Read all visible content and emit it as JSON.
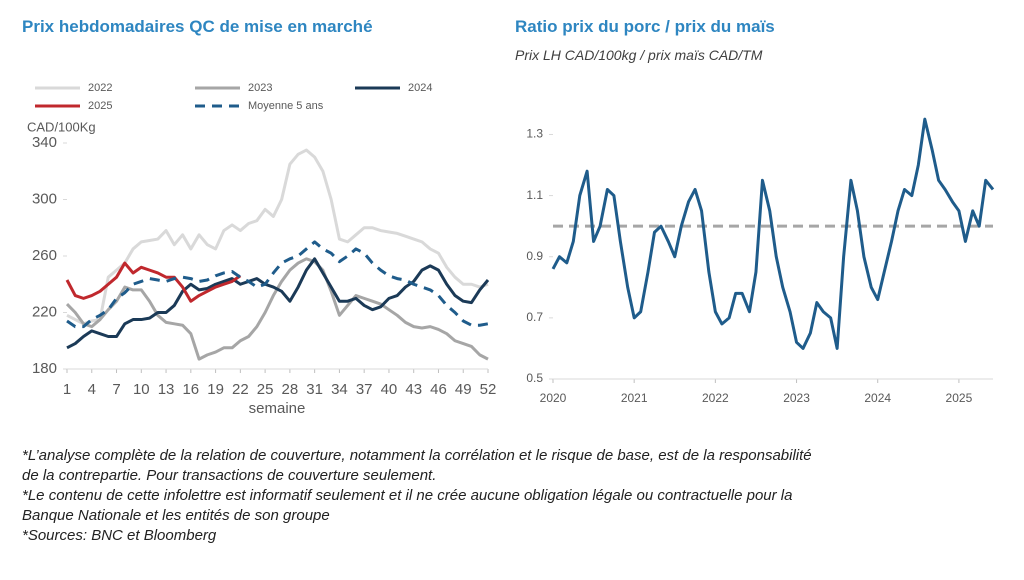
{
  "chart_data": [
    {
      "type": "line",
      "title": "Prix hebdomadaires QC de mise en marché",
      "y_label": "CAD/100Kg",
      "x_label": "semaine",
      "x": [
        1,
        2,
        3,
        4,
        5,
        6,
        7,
        8,
        9,
        10,
        11,
        12,
        13,
        14,
        15,
        16,
        17,
        18,
        19,
        20,
        21,
        22,
        23,
        24,
        25,
        26,
        27,
        28,
        29,
        30,
        31,
        32,
        33,
        34,
        35,
        36,
        37,
        38,
        39,
        40,
        41,
        42,
        43,
        44,
        45,
        46,
        47,
        48,
        49,
        50,
        51,
        52
      ],
      "xlim": [
        1,
        52
      ],
      "xticks": [
        1,
        4,
        7,
        10,
        13,
        16,
        19,
        22,
        25,
        28,
        31,
        34,
        37,
        40,
        43,
        46,
        49,
        52
      ],
      "ylim": [
        180,
        340
      ],
      "yticks": [
        180,
        220,
        260,
        300,
        340
      ],
      "legend": "top",
      "series": [
        {
          "name": "2022",
          "color": "#d9d9d9",
          "values": [
            218,
            215,
            212,
            214,
            215,
            245,
            250,
            255,
            265,
            270,
            271,
            272,
            278,
            268,
            275,
            265,
            275,
            268,
            265,
            278,
            282,
            278,
            283,
            285,
            293,
            288,
            300,
            325,
            332,
            335,
            330,
            320,
            300,
            272,
            270,
            275,
            280,
            280,
            278,
            277,
            276,
            274,
            272,
            270,
            265,
            262,
            252,
            245,
            240,
            240,
            238,
            240
          ]
        },
        {
          "name": "2023",
          "color": "#a6a6a6",
          "values": [
            226,
            220,
            212,
            210,
            215,
            222,
            228,
            238,
            236,
            236,
            228,
            218,
            213,
            212,
            211,
            205,
            187,
            190,
            192,
            195,
            195,
            200,
            203,
            210,
            220,
            232,
            242,
            250,
            255,
            258,
            256,
            250,
            235,
            218,
            225,
            232,
            230,
            228,
            226,
            222,
            218,
            213,
            210,
            209,
            210,
            208,
            205,
            200,
            198,
            196,
            190,
            187
          ]
        },
        {
          "name": "2024",
          "color": "#1b3a57",
          "values": [
            195,
            198,
            203,
            207,
            205,
            203,
            203,
            212,
            215,
            215,
            216,
            220,
            220,
            225,
            235,
            240,
            236,
            237,
            240,
            242,
            244,
            240,
            242,
            244,
            240,
            238,
            235,
            228,
            238,
            250,
            258,
            248,
            238,
            228,
            228,
            230,
            225,
            222,
            224,
            230,
            232,
            238,
            242,
            250,
            253,
            250,
            240,
            232,
            228,
            227,
            236,
            243
          ]
        },
        {
          "name": "2025",
          "color": "#c0282d",
          "values": [
            243,
            232,
            230,
            232,
            235,
            240,
            245,
            255,
            248,
            252,
            250,
            248,
            245,
            245,
            238,
            228,
            232,
            235,
            238,
            240,
            242,
            246,
            null,
            null,
            null,
            null,
            null,
            null,
            null,
            null,
            null,
            null,
            null,
            null,
            null,
            null,
            null,
            null,
            null,
            null,
            null,
            null,
            null,
            null,
            null,
            null,
            null,
            null,
            null,
            null,
            null,
            null
          ]
        },
        {
          "name": "Moyenne 5 ans",
          "color": "#1f5c8b",
          "dashed": true,
          "values": [
            214,
            210,
            210,
            215,
            218,
            222,
            230,
            234,
            240,
            242,
            244,
            243,
            242,
            244,
            245,
            244,
            242,
            243,
            246,
            248,
            249,
            245,
            242,
            238,
            240,
            248,
            255,
            258,
            260,
            265,
            270,
            265,
            262,
            256,
            260,
            265,
            262,
            255,
            250,
            246,
            244,
            243,
            240,
            238,
            236,
            232,
            225,
            220,
            214,
            211,
            211,
            212
          ]
        }
      ]
    },
    {
      "type": "line",
      "title": "Ratio prix du porc / prix du maïs",
      "subtitle": "Prix LH CAD/100kg / prix maïs CAD/TM",
      "x": [
        2020,
        2020.08,
        2020.17,
        2020.25,
        2020.33,
        2020.42,
        2020.5,
        2020.58,
        2020.67,
        2020.75,
        2020.83,
        2020.92,
        2021,
        2021.08,
        2021.17,
        2021.25,
        2021.33,
        2021.42,
        2021.5,
        2021.58,
        2021.67,
        2021.75,
        2021.83,
        2021.92,
        2022,
        2022.08,
        2022.17,
        2022.25,
        2022.33,
        2022.42,
        2022.5,
        2022.58,
        2022.67,
        2022.75,
        2022.83,
        2022.92,
        2023,
        2023.08,
        2023.17,
        2023.25,
        2023.33,
        2023.42,
        2023.5,
        2023.58,
        2023.67,
        2023.75,
        2023.83,
        2023.92,
        2024,
        2024.08,
        2024.17,
        2024.25,
        2024.33,
        2024.42,
        2024.5,
        2024.58,
        2024.67,
        2024.75,
        2024.83,
        2024.92,
        2025,
        2025.08,
        2025.17,
        2025.25,
        2025.33,
        2025.42
      ],
      "xlim": [
        2020,
        2025.42
      ],
      "xticks": [
        2020,
        2021,
        2022,
        2023,
        2024,
        2025
      ],
      "ylim": [
        0.5,
        1.38
      ],
      "yticks": [
        0.5,
        0.7,
        0.9,
        1.1,
        1.3
      ],
      "reference_line": 1,
      "reference_color": "#a6a6a6",
      "series": [
        {
          "name": "Ratio",
          "color": "#1f5c8b",
          "values": [
            0.86,
            0.9,
            0.88,
            0.95,
            1.1,
            1.18,
            0.95,
            1.0,
            1.12,
            1.1,
            0.95,
            0.8,
            0.7,
            0.72,
            0.85,
            0.98,
            1.0,
            0.95,
            0.9,
            1.0,
            1.08,
            1.12,
            1.05,
            0.85,
            0.72,
            0.68,
            0.7,
            0.78,
            0.78,
            0.72,
            0.85,
            1.15,
            1.05,
            0.9,
            0.8,
            0.72,
            0.62,
            0.6,
            0.65,
            0.75,
            0.72,
            0.7,
            0.6,
            0.9,
            1.15,
            1.05,
            0.9,
            0.8,
            0.76,
            0.85,
            0.95,
            1.05,
            1.12,
            1.1,
            1.2,
            1.35,
            1.25,
            1.15,
            1.12,
            1.08,
            1.05,
            0.95,
            1.05,
            1.0,
            1.15,
            1.12
          ]
        }
      ]
    }
  ],
  "footnotes": [
    "*L’analyse complète de la relation de couverture, notamment la corrélation et le risque de base, est de la responsabilité de la contrepartie. Pour transactions de couverture seulement.",
    "*Le contenu de cette infolettre est informatif seulement et il ne crée aucune obligation légale ou contractuelle pour la Banque Nationale et les entités de son groupe",
    "*Sources: BNC et Bloomberg"
  ]
}
